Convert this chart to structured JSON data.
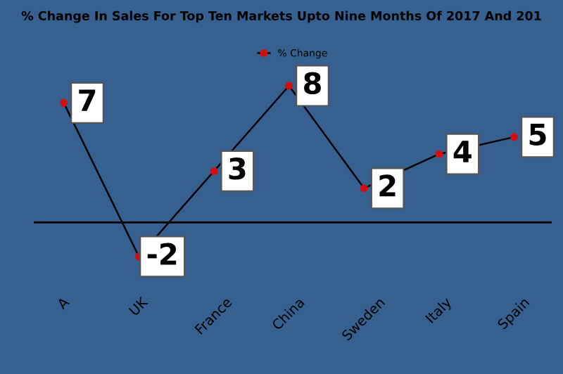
{
  "chart_data": {
    "type": "line",
    "title": "% Change In Sales For Top Ten Markets Upto Nine Months Of 2017 And 201",
    "categories": [
      "A",
      "UK",
      "France",
      "China",
      "Sweden",
      "Italy",
      "Spain"
    ],
    "series": [
      {
        "name": "% Change",
        "color": "#000000",
        "values": [
          7,
          -2,
          3,
          8,
          2,
          4,
          5
        ]
      }
    ],
    "data_labels": true,
    "legend": "top",
    "marker": "circle",
    "grid": false,
    "tick_labels": "x"
  }
}
